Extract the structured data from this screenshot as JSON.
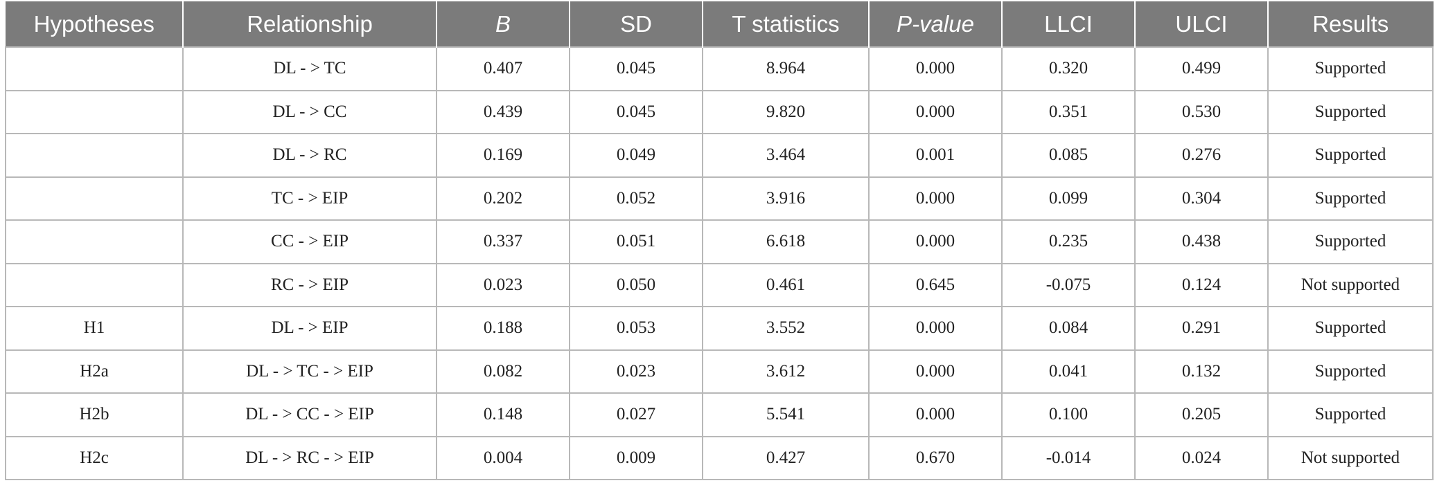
{
  "table": {
    "headers": [
      {
        "text": "Hypotheses",
        "italic_part": "",
        "rest": ""
      },
      {
        "text": "Relationship",
        "italic_part": "",
        "rest": ""
      },
      {
        "text": "",
        "italic_part": "B",
        "rest": ""
      },
      {
        "text": "SD",
        "italic_part": "",
        "rest": ""
      },
      {
        "text": "T statistics",
        "italic_part": "",
        "rest": ""
      },
      {
        "text": "",
        "italic_part": "P",
        "rest": "-value"
      },
      {
        "text": "LLCI",
        "italic_part": "",
        "rest": ""
      },
      {
        "text": "ULCI",
        "italic_part": "",
        "rest": ""
      },
      {
        "text": "Results",
        "italic_part": "",
        "rest": ""
      }
    ],
    "rows": [
      [
        "",
        "DL - > TC",
        "0.407",
        "0.045",
        "8.964",
        "0.000",
        "0.320",
        "0.499",
        "Supported"
      ],
      [
        "",
        "DL - > CC",
        "0.439",
        "0.045",
        "9.820",
        "0.000",
        "0.351",
        "0.530",
        "Supported"
      ],
      [
        "",
        "DL - > RC",
        "0.169",
        "0.049",
        "3.464",
        "0.001",
        "0.085",
        "0.276",
        "Supported"
      ],
      [
        "",
        "TC - > EIP",
        "0.202",
        "0.052",
        "3.916",
        "0.000",
        "0.099",
        "0.304",
        "Supported"
      ],
      [
        "",
        "CC - > EIP",
        "0.337",
        "0.051",
        "6.618",
        "0.000",
        "0.235",
        "0.438",
        "Supported"
      ],
      [
        "",
        "RC - > EIP",
        "0.023",
        "0.050",
        "0.461",
        "0.645",
        "-0.075",
        "0.124",
        "Not supported"
      ],
      [
        "H1",
        "DL - > EIP",
        "0.188",
        "0.053",
        "3.552",
        "0.000",
        "0.084",
        "0.291",
        "Supported"
      ],
      [
        "H2a",
        "DL - > TC - > EIP",
        "0.082",
        "0.023",
        "3.612",
        "0.000",
        "0.041",
        "0.132",
        "Supported"
      ],
      [
        "H2b",
        "DL - > CC - > EIP",
        "0.148",
        "0.027",
        "5.541",
        "0.000",
        "0.100",
        "0.205",
        "Supported"
      ],
      [
        "H2c",
        "DL - > RC - > EIP",
        "0.004",
        "0.009",
        "0.427",
        "0.670",
        "-0.014",
        "0.024",
        "Not supported"
      ]
    ]
  }
}
